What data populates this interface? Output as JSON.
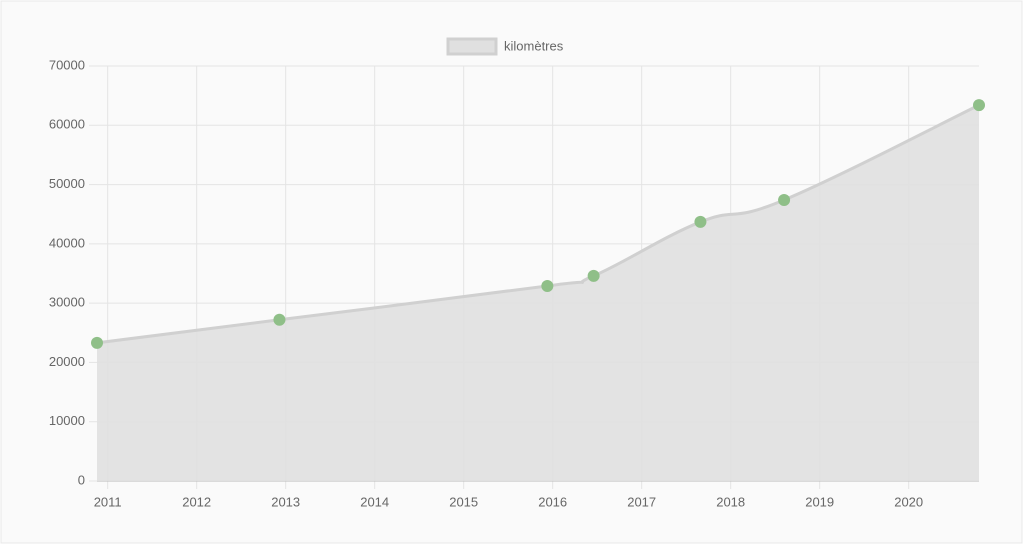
{
  "chart_data": {
    "type": "line",
    "x": [
      2010.88,
      2012.93,
      2015.94,
      2016.46,
      2017.66,
      2018.6,
      2020.79
    ],
    "series": [
      {
        "name": "kilomètres",
        "color": "#8fbf88",
        "fill": "#e0e0e0",
        "line_color": "#d0d0d0",
        "values": [
          23300,
          27200,
          32900,
          34600,
          43700,
          47400,
          63400
        ]
      }
    ],
    "xlim": [
      2010.88,
      2020.79
    ],
    "xticks": [
      2011,
      2012,
      2013,
      2014,
      2015,
      2016,
      2017,
      2018,
      2019,
      2020
    ],
    "ylim": [
      0,
      70000
    ],
    "yticks": [
      0,
      10000,
      20000,
      30000,
      40000,
      50000,
      60000,
      70000
    ],
    "grid": true,
    "legend": "top"
  }
}
